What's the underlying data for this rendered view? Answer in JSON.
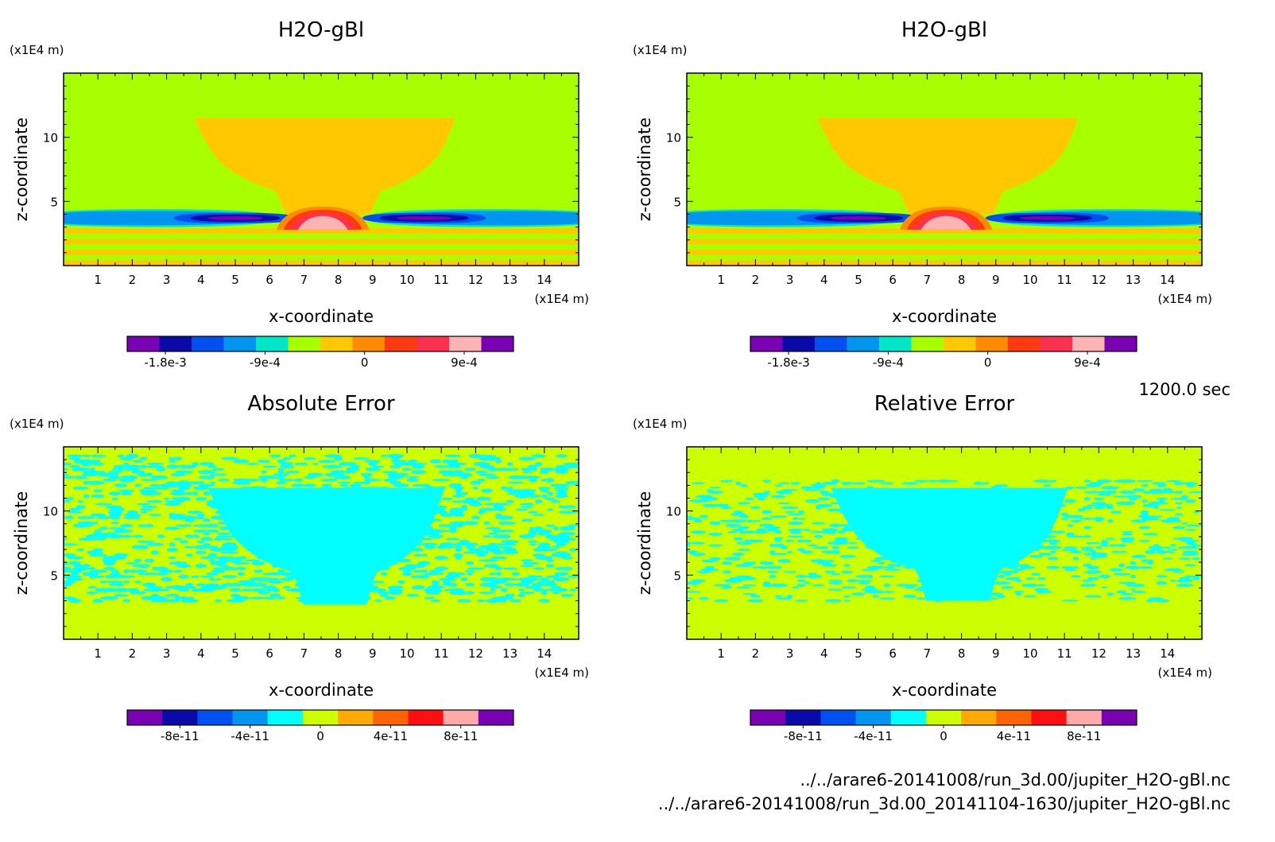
{
  "footer": {
    "time": "1200.0 sec",
    "file1": "../../arare6-20141008/run_3d.00/jupiter_H2O-gBl.nc",
    "file2": "../../arare6-20141008/run_3d.00_20141104-1630/jupiter_H2O-gBl.nc"
  },
  "colors": {
    "field_levels": [
      "#7a00b4",
      "#0a0aa8",
      "#0050f0",
      "#0096f0",
      "#00e6c8",
      "#a8ff00",
      "#ffc800",
      "#ff8c00",
      "#ff3a10",
      "#ff3050",
      "#ffb4b4"
    ],
    "error_levels": [
      "#7a00b4",
      "#0a0aa8",
      "#0050f0",
      "#0096f0",
      "#00ffff",
      "#ccff00",
      "#ffaa00",
      "#ff6400",
      "#ff1010",
      "#ffaaaa"
    ]
  },
  "chart_data": [
    {
      "type": "heatmap",
      "title": "H2O-gBl",
      "xlabel": "x-coordinate",
      "ylabel": "z-coordinate",
      "x_unit": "(x1E4 m)",
      "y_unit": "(x1E4 m)",
      "xlim": [
        0,
        15
      ],
      "ylim": [
        0,
        15
      ],
      "x_ticks": [
        1,
        2,
        3,
        4,
        5,
        6,
        7,
        8,
        9,
        10,
        11,
        12,
        13,
        14
      ],
      "y_ticks": [
        5,
        10
      ],
      "background_level": 5,
      "features": [
        {
          "kind": "anvil",
          "level": 6,
          "x_top": [
            3.8,
            11.4
          ],
          "x_bottom": [
            6.4,
            9.0
          ],
          "z": [
            4.0,
            11.5
          ]
        },
        {
          "kind": "horizontal_bands",
          "z": [
            0.0,
            2.9
          ],
          "levels": [
            6,
            5,
            6,
            5,
            6,
            5,
            6
          ]
        },
        {
          "kind": "dry_layer_left",
          "x": [
            0.0,
            6.2
          ],
          "z": [
            3.0,
            4.4
          ],
          "min_x": 5.0,
          "min_z": 3.5
        },
        {
          "kind": "dry_layer_right",
          "x": [
            8.8,
            15.0
          ],
          "z": [
            3.0,
            4.4
          ],
          "min_x": 10.5,
          "min_z": 3.5
        },
        {
          "kind": "moist_core",
          "x": [
            6.2,
            8.9
          ],
          "z": [
            2.8,
            4.6
          ],
          "max_x": 8.0,
          "max_z": 3.2
        }
      ],
      "colorbar": {
        "min": -0.002,
        "max": 0.0012,
        "step": 0.0003,
        "tick_labels": [
          "-1.8e-3",
          "-9e-4",
          "0",
          "9e-4"
        ],
        "tick_values": [
          -0.0018,
          -0.0009,
          0,
          0.0009
        ]
      }
    },
    {
      "type": "heatmap",
      "title": "H2O-gBl",
      "xlabel": "x-coordinate",
      "ylabel": "z-coordinate",
      "x_unit": "(x1E4 m)",
      "y_unit": "(x1E4 m)",
      "xlim": [
        0,
        15
      ],
      "ylim": [
        0,
        15
      ],
      "x_ticks": [
        1,
        2,
        3,
        4,
        5,
        6,
        7,
        8,
        9,
        10,
        11,
        12,
        13,
        14
      ],
      "y_ticks": [
        5,
        10
      ],
      "background_level": 5,
      "features": [
        {
          "kind": "anvil",
          "level": 6,
          "x_top": [
            3.8,
            11.4
          ],
          "x_bottom": [
            6.4,
            9.0
          ],
          "z": [
            4.0,
            11.5
          ]
        },
        {
          "kind": "horizontal_bands",
          "z": [
            0.0,
            2.9
          ],
          "levels": [
            6,
            5,
            6,
            5,
            6,
            5,
            6
          ]
        },
        {
          "kind": "dry_layer_left",
          "x": [
            0.0,
            6.2
          ],
          "z": [
            3.0,
            4.4
          ],
          "min_x": 5.0,
          "min_z": 3.5
        },
        {
          "kind": "dry_layer_right",
          "x": [
            8.8,
            15.0
          ],
          "z": [
            3.0,
            4.4
          ],
          "min_x": 10.5,
          "min_z": 3.5
        },
        {
          "kind": "moist_core",
          "x": [
            6.2,
            8.9
          ],
          "z": [
            2.8,
            4.6
          ],
          "max_x": 8.0,
          "max_z": 3.2
        }
      ],
      "colorbar": {
        "min": -0.002,
        "max": 0.0012,
        "step": 0.0003,
        "tick_labels": [
          "-1.8e-3",
          "-9e-4",
          "0",
          "9e-4"
        ],
        "tick_values": [
          -0.0018,
          -0.0009,
          0,
          0.0009
        ]
      }
    },
    {
      "type": "heatmap",
      "title": "Absolute Error",
      "xlabel": "x-coordinate",
      "ylabel": "z-coordinate",
      "x_unit": "(x1E4 m)",
      "y_unit": "(x1E4 m)",
      "xlim": [
        0,
        15
      ],
      "ylim": [
        0,
        15
      ],
      "x_ticks": [
        1,
        2,
        3,
        4,
        5,
        6,
        7,
        8,
        9,
        10,
        11,
        12,
        13,
        14
      ],
      "y_ticks": [
        5,
        10
      ],
      "background_level": 5,
      "features": [
        {
          "kind": "anvil",
          "level": 4,
          "x_top": [
            4.2,
            11.1
          ],
          "x_bottom": [
            6.9,
            8.9
          ],
          "z": [
            2.7,
            11.8
          ]
        },
        {
          "kind": "noise",
          "level": 4,
          "x": [
            0,
            15
          ],
          "z": [
            3.0,
            14.5
          ],
          "density": 0.22
        }
      ],
      "colorbar": {
        "min": -1e-10,
        "max": 1e-10,
        "step": 2e-11,
        "tick_labels": [
          "-8e-11",
          "-4e-11",
          "0",
          "4e-11",
          "8e-11"
        ],
        "tick_values": [
          -8e-11,
          -4e-11,
          0,
          4e-11,
          8e-11
        ]
      }
    },
    {
      "type": "heatmap",
      "title": "Relative Error",
      "xlabel": "x-coordinate",
      "ylabel": "z-coordinate",
      "x_unit": "(x1E4 m)",
      "y_unit": "(x1E4 m)",
      "xlim": [
        0,
        15
      ],
      "ylim": [
        0,
        15
      ],
      "x_ticks": [
        1,
        2,
        3,
        4,
        5,
        6,
        7,
        8,
        9,
        10,
        11,
        12,
        13,
        14
      ],
      "y_ticks": [
        5,
        10
      ],
      "background_level": 5,
      "features": [
        {
          "kind": "anvil",
          "level": 4,
          "x_top": [
            4.2,
            11.1
          ],
          "x_bottom": [
            6.9,
            8.9
          ],
          "z": [
            3.0,
            11.8
          ]
        },
        {
          "kind": "noise",
          "level": 4,
          "x": [
            0,
            15
          ],
          "z": [
            3.0,
            12.5
          ],
          "density": 0.14
        }
      ],
      "colorbar": {
        "min": -1e-10,
        "max": 1e-10,
        "step": 2e-11,
        "tick_labels": [
          "-8e-11",
          "-4e-11",
          "0",
          "4e-11",
          "8e-11"
        ],
        "tick_values": [
          -8e-11,
          -4e-11,
          0,
          4e-11,
          8e-11
        ]
      }
    }
  ]
}
